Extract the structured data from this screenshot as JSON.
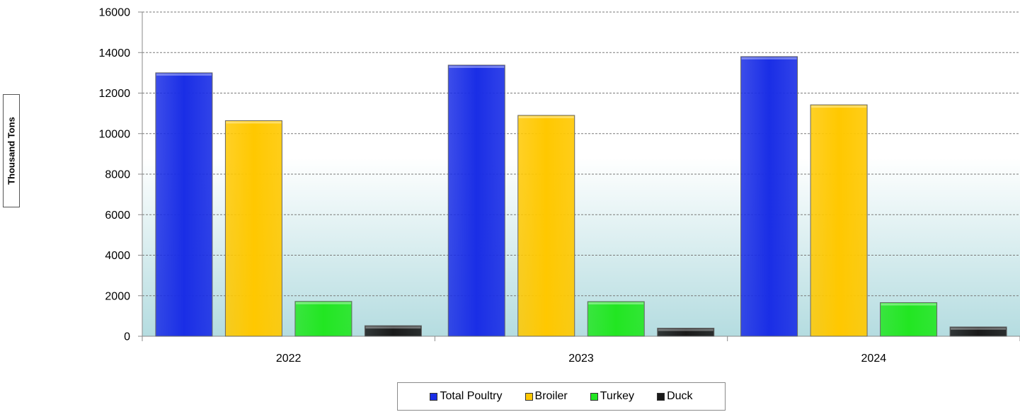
{
  "chart_data": {
    "type": "bar",
    "title": "",
    "xlabel": "",
    "ylabel": "Thousand Tons",
    "categories": [
      "2022",
      "2023",
      "2024"
    ],
    "ylim": [
      0,
      16000
    ],
    "yticks": [
      0,
      2000,
      4000,
      6000,
      8000,
      10000,
      12000,
      14000,
      16000
    ],
    "grid": true,
    "legend_position": "bottom",
    "series": [
      {
        "name": "Total Poultry",
        "color": "#1a2ee6",
        "values": [
          13000,
          13380,
          13800
        ]
      },
      {
        "name": "Broiler",
        "color": "#ffc800",
        "values": [
          10640,
          10900,
          11420
        ]
      },
      {
        "name": "Turkey",
        "color": "#22e622",
        "values": [
          1720,
          1710,
          1660
        ]
      },
      {
        "name": "Duck",
        "color": "#1a1a1a",
        "values": [
          520,
          400,
          460
        ]
      }
    ]
  }
}
